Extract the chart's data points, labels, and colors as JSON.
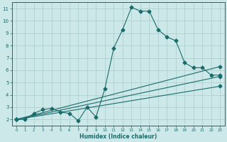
{
  "bg_color": "#cde8e8",
  "grid_color": "#b0d0d0",
  "line_color": "#1a6b6b",
  "xlabel": "Humidex (Indice chaleur)",
  "xlim": [
    -0.5,
    23.5
  ],
  "ylim": [
    1.5,
    11.5
  ],
  "xticks": [
    0,
    1,
    2,
    3,
    4,
    5,
    6,
    7,
    8,
    9,
    10,
    11,
    12,
    13,
    14,
    15,
    16,
    17,
    18,
    19,
    20,
    21,
    22,
    23
  ],
  "yticks": [
    2,
    3,
    4,
    5,
    6,
    7,
    8,
    9,
    10,
    11
  ],
  "curve1_x": [
    0,
    1,
    2,
    3,
    4,
    5,
    6,
    7,
    8,
    9,
    10,
    11,
    12,
    13,
    14,
    15,
    16,
    17,
    18,
    19,
    20,
    21,
    22,
    23
  ],
  "curve1_y": [
    2.0,
    2.0,
    2.5,
    2.8,
    2.9,
    2.6,
    2.5,
    1.9,
    3.0,
    2.2,
    4.5,
    7.8,
    9.3,
    11.1,
    10.8,
    10.8,
    9.3,
    8.7,
    8.4,
    6.6,
    6.2,
    6.2,
    5.6,
    5.6
  ],
  "curve2_x": [
    0,
    23
  ],
  "curve2_y": [
    2.0,
    6.3
  ],
  "curve3_x": [
    0,
    23
  ],
  "curve3_y": [
    2.0,
    5.5
  ],
  "curve4_x": [
    0,
    23
  ],
  "curve4_y": [
    2.0,
    4.7
  ],
  "markersize": 2.5,
  "linewidth": 0.8
}
